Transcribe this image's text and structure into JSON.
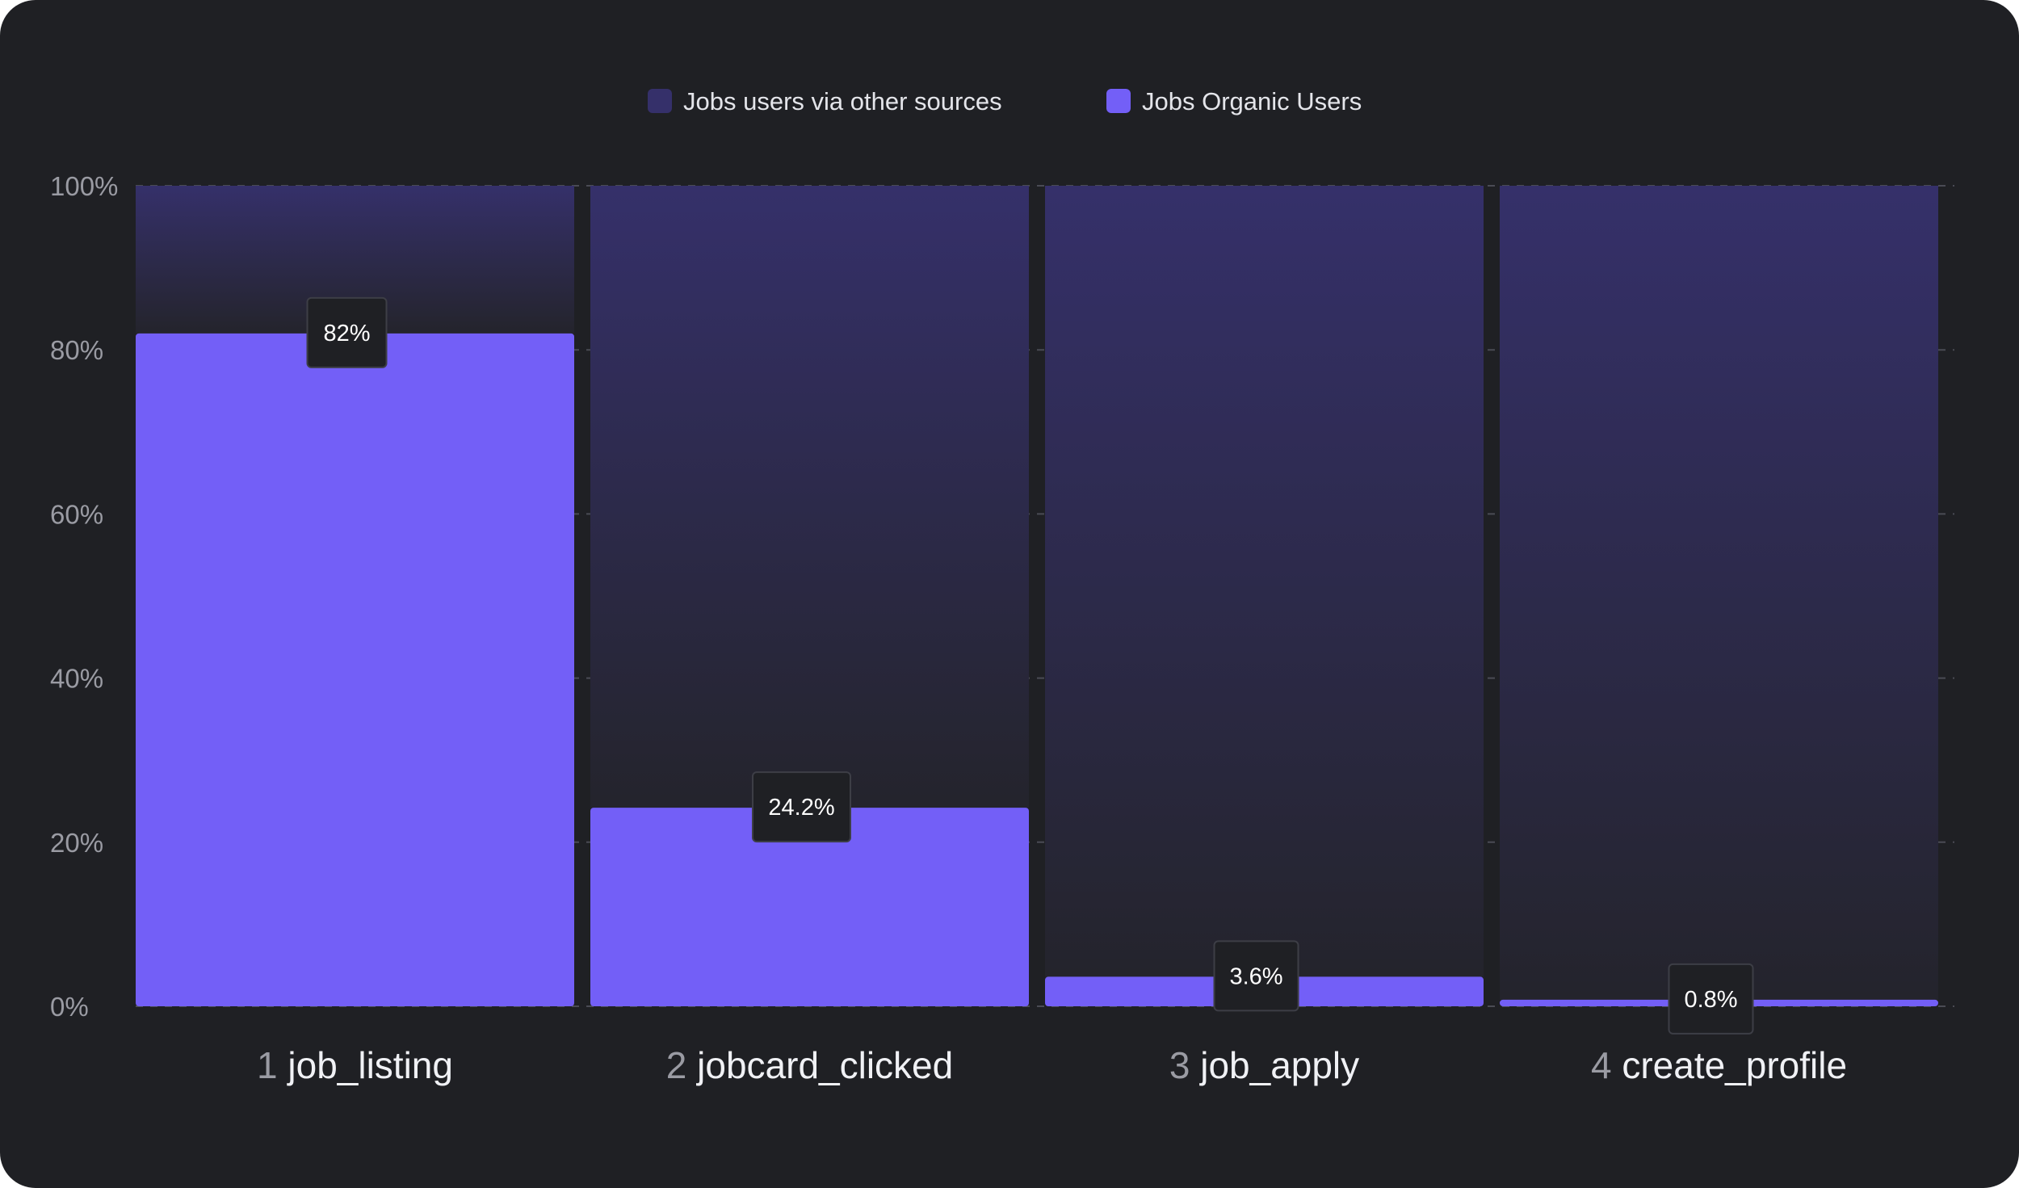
{
  "chart_data": {
    "type": "bar",
    "stacked": true,
    "categories": [
      "job_listing",
      "jobcard_clicked",
      "job_apply",
      "create_profile"
    ],
    "category_numbers": [
      "1",
      "2",
      "3",
      "4"
    ],
    "series": [
      {
        "name": "Jobs users via other sources",
        "values": [
          18,
          75.8,
          96.4,
          99.2
        ],
        "color": "#35306a"
      },
      {
        "name": "Jobs Organic Users",
        "values": [
          82,
          24.2,
          3.6,
          0.8
        ],
        "color": "#735ff7"
      }
    ],
    "data_labels": [
      "82%",
      "24.2%",
      "3.6%",
      "0.8%"
    ],
    "y_ticks": [
      "0%",
      "20%",
      "40%",
      "60%",
      "80%",
      "100%"
    ],
    "ylim": [
      0,
      100
    ],
    "legend_position": "top-center",
    "grid": true,
    "background": "#1f2024",
    "accent": "#735ff7"
  }
}
